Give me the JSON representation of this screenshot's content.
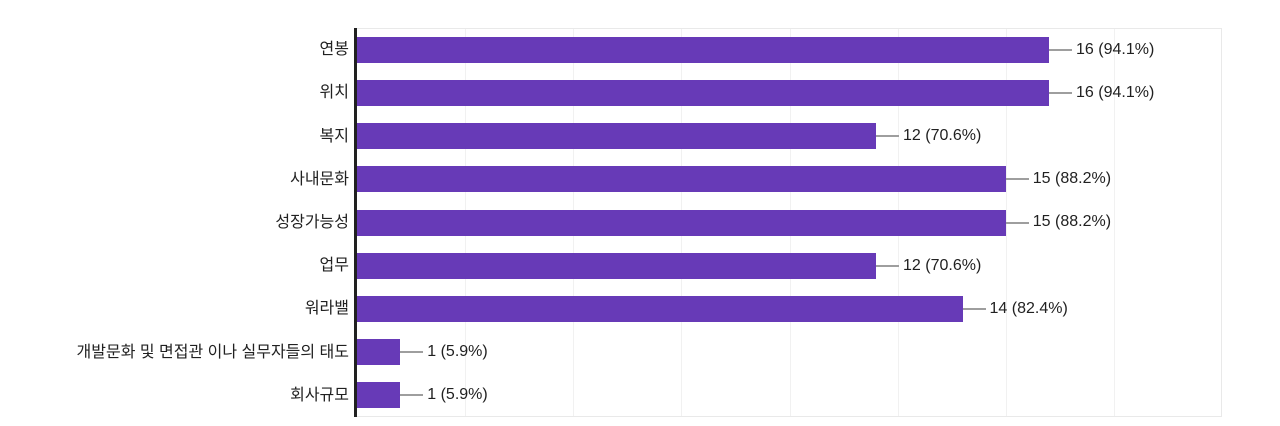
{
  "chart_data": {
    "type": "bar",
    "orientation": "horizontal",
    "title": "",
    "xlabel": "",
    "ylabel": "",
    "xlim": [
      0,
      20
    ],
    "gridline_interval": 2.5,
    "gridline_count": 8,
    "grid": "vertical-only",
    "legend": "none",
    "categories": [
      "연봉",
      "위치",
      "복지",
      "사내문화",
      "성장가능성",
      "업무",
      "워라밸",
      "개발문화 및 면접관 이나 실무자들의 태도",
      "회사규모"
    ],
    "values": [
      16,
      16,
      12,
      15,
      15,
      12,
      14,
      1,
      1
    ],
    "value_labels": [
      "16 (94.1%)",
      "16 (94.1%)",
      "12 (70.6%)",
      "15 (88.2%)",
      "15 (88.2%)",
      "12 (70.6%)",
      "14 (82.4%)",
      "1 (5.9%)",
      "1 (5.9%)"
    ],
    "colors": {
      "bar": "#673ab7",
      "axis": "#212121",
      "gridline": "#f1f1f1",
      "plot_border": "#e9e9e9",
      "connector": "#9e9e9e",
      "label_text": "#212121",
      "background": "#ffffff"
    }
  }
}
